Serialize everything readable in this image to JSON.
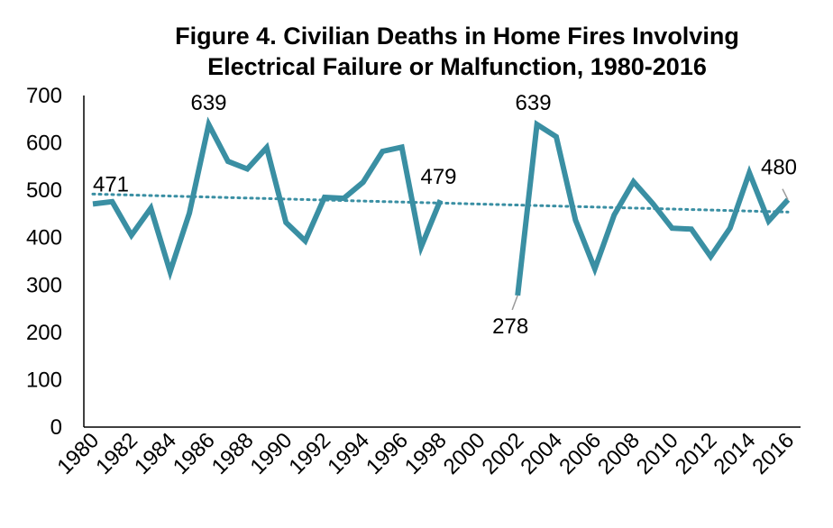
{
  "chart_data": {
    "type": "line",
    "title_lines": [
      "Figure 4. Civilian Deaths in Home Fires Involving",
      "Electrical Failure or Malfunction, 1980-2016"
    ],
    "xlabel": "",
    "ylabel": "",
    "ylim": [
      0,
      700
    ],
    "y_ticks": [
      "0",
      "100",
      "200",
      "300",
      "400",
      "500",
      "600",
      "700"
    ],
    "x_range": [
      1980,
      2016
    ],
    "x_ticks": [
      "1980",
      "1982",
      "1984",
      "1986",
      "1988",
      "1990",
      "1992",
      "1994",
      "1996",
      "1998",
      "2000",
      "2002",
      "2004",
      "2006",
      "2008",
      "2010",
      "2012",
      "2014",
      "2016"
    ],
    "grid": false,
    "legend": "none",
    "series": [
      {
        "segments": [
          {
            "x": [
              1980,
              1981,
              1982,
              1983,
              1984,
              1985,
              1986,
              1987,
              1988,
              1989,
              1990,
              1991,
              1992,
              1993,
              1994,
              1995,
              1996,
              1997,
              1998
            ],
            "y": [
              471,
              476,
              405,
              462,
              328,
              452,
              639,
              561,
              545,
              590,
              432,
              393,
              485,
              483,
              517,
              582,
              591,
              380,
              479
            ]
          },
          {
            "x": [
              2002,
              2003,
              2004,
              2005,
              2006,
              2007,
              2008,
              2009,
              2010,
              2011,
              2012,
              2013,
              2014,
              2015,
              2016
            ],
            "y": [
              278,
              639,
              613,
              437,
              334,
              448,
              518,
              472,
              420,
              418,
              360,
              420,
              537,
              435,
              480
            ]
          }
        ],
        "color": "#3A8FA3"
      }
    ],
    "trendline": {
      "style": "dotted",
      "color": "#3A8FA3",
      "x": [
        1980,
        2016
      ],
      "y": [
        492,
        454
      ]
    },
    "data_labels": [
      {
        "x": 1980,
        "y": 471,
        "text": "471"
      },
      {
        "x": 1986,
        "y": 639,
        "text": "639"
      },
      {
        "x": 1998,
        "y": 479,
        "text": "479"
      },
      {
        "x": 2002,
        "y": 278,
        "text": "278"
      },
      {
        "x": 2003,
        "y": 639,
        "text": "639"
      },
      {
        "x": 2016,
        "y": 480,
        "text": "480"
      }
    ]
  }
}
